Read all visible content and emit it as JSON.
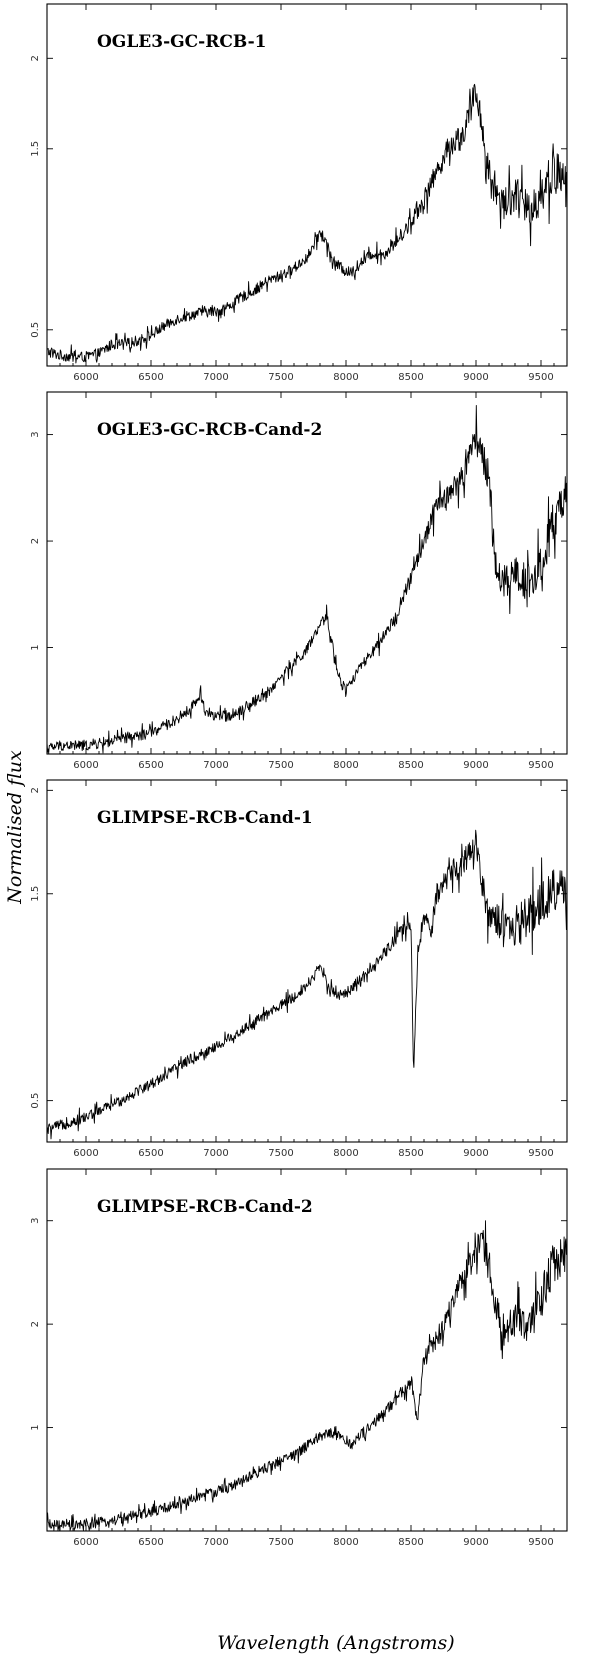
{
  "figure": {
    "ylabel": "Normalised flux",
    "xlabel": "Wavelength (Angstroms)"
  },
  "chart_data": [
    {
      "type": "line",
      "title": "OGLE3-GC-RCB-1",
      "xlim": [
        5700,
        9700
      ],
      "ylim": [
        0.3,
        2.3
      ],
      "xticks": [
        6000,
        6500,
        7000,
        7500,
        8000,
        8500,
        9000,
        9500
      ],
      "xtick_labels": [
        "6000",
        "6500",
        "7000",
        "7500",
        "8000",
        "8500",
        "9000",
        "9500"
      ],
      "yticks": [
        0.5,
        1.5,
        2
      ],
      "ytick_labels": [
        "0.5",
        "1.5",
        "2"
      ],
      "series": [
        {
          "x": [
            5700,
            5800,
            5900,
            6000,
            6100,
            6200,
            6300,
            6400,
            6500,
            6600,
            6700,
            6800,
            6900,
            7000,
            7100,
            7200,
            7300,
            7400,
            7500,
            7600,
            7700,
            7750,
            7800,
            7850,
            7900,
            8000,
            8050,
            8100,
            8200,
            8300,
            8400,
            8500,
            8600,
            8700,
            8800,
            8900,
            9000,
            9050,
            9100,
            9200,
            9300,
            9400,
            9500,
            9600,
            9700
          ],
          "y": [
            0.38,
            0.36,
            0.35,
            0.35,
            0.37,
            0.42,
            0.42,
            0.44,
            0.47,
            0.52,
            0.56,
            0.58,
            0.6,
            0.6,
            0.63,
            0.68,
            0.72,
            0.77,
            0.8,
            0.84,
            0.9,
            0.96,
            1.04,
            0.98,
            0.88,
            0.82,
            0.82,
            0.86,
            0.92,
            0.92,
            1.0,
            1.1,
            1.22,
            1.38,
            1.52,
            1.58,
            1.82,
            1.62,
            1.35,
            1.2,
            1.25,
            1.15,
            1.25,
            1.38,
            1.3
          ]
        }
      ]
    },
    {
      "type": "line",
      "title": "OGLE3-GC-RCB-Cand-2",
      "xlim": [
        5700,
        9700
      ],
      "ylim": [
        0.0,
        3.4
      ],
      "xticks": [
        6000,
        6500,
        7000,
        7500,
        8000,
        8500,
        9000,
        9500
      ],
      "xtick_labels": [
        "6000",
        "6500",
        "7000",
        "7500",
        "8000",
        "8500",
        "9000",
        "9500"
      ],
      "yticks": [
        1,
        2,
        3
      ],
      "ytick_labels": [
        "1",
        "2",
        "3"
      ],
      "series": [
        {
          "x": [
            5700,
            5800,
            5900,
            6000,
            6100,
            6200,
            6300,
            6400,
            6500,
            6600,
            6700,
            6800,
            6880,
            6920,
            7000,
            7100,
            7200,
            7300,
            7400,
            7500,
            7600,
            7700,
            7800,
            7850,
            7900,
            7950,
            8000,
            8100,
            8200,
            8300,
            8400,
            8500,
            8600,
            8700,
            8800,
            8900,
            9000,
            9100,
            9150,
            9200,
            9300,
            9400,
            9500,
            9600,
            9700
          ],
          "y": [
            0.05,
            0.08,
            0.08,
            0.08,
            0.1,
            0.12,
            0.15,
            0.17,
            0.2,
            0.26,
            0.33,
            0.42,
            0.55,
            0.4,
            0.35,
            0.36,
            0.42,
            0.5,
            0.58,
            0.72,
            0.85,
            0.98,
            1.2,
            1.3,
            1.0,
            0.7,
            0.6,
            0.8,
            0.95,
            1.1,
            1.35,
            1.65,
            2.0,
            2.35,
            2.45,
            2.6,
            3.0,
            2.6,
            1.8,
            1.6,
            1.7,
            1.6,
            1.75,
            2.2,
            2.35
          ]
        }
      ]
    },
    {
      "type": "line",
      "title": "GLIMPSE-RCB-Cand-1",
      "xlim": [
        5700,
        9700
      ],
      "ylim": [
        0.3,
        2.05
      ],
      "xticks": [
        6000,
        6500,
        7000,
        7500,
        8000,
        8500,
        9000,
        9500
      ],
      "xtick_labels": [
        "6000",
        "6500",
        "7000",
        "7500",
        "8000",
        "8500",
        "9000",
        "9500"
      ],
      "yticks": [
        0.5,
        1.5,
        2
      ],
      "ytick_labels": [
        "0.5",
        "1.5",
        "2"
      ],
      "series": [
        {
          "x": [
            5700,
            5800,
            5900,
            6000,
            6100,
            6200,
            6300,
            6400,
            6500,
            6600,
            6700,
            6800,
            6900,
            7000,
            7100,
            7200,
            7300,
            7400,
            7500,
            7600,
            7700,
            7750,
            7800,
            7850,
            7900,
            8000,
            8100,
            8200,
            8300,
            8400,
            8500,
            8520,
            8550,
            8600,
            8650,
            8700,
            8800,
            8900,
            9000,
            9050,
            9100,
            9200,
            9300,
            9400,
            9500,
            9600,
            9700
          ],
          "y": [
            0.36,
            0.38,
            0.4,
            0.42,
            0.45,
            0.48,
            0.51,
            0.55,
            0.58,
            0.62,
            0.66,
            0.7,
            0.73,
            0.76,
            0.8,
            0.84,
            0.88,
            0.92,
            0.96,
            1.0,
            1.06,
            1.1,
            1.15,
            1.08,
            1.02,
            1.02,
            1.08,
            1.13,
            1.22,
            1.3,
            1.35,
            0.6,
            1.2,
            1.4,
            1.3,
            1.5,
            1.6,
            1.65,
            1.75,
            1.55,
            1.4,
            1.35,
            1.3,
            1.4,
            1.45,
            1.52,
            1.5
          ]
        }
      ]
    },
    {
      "type": "line",
      "title": "GLIMPSE-RCB-Cand-2",
      "xlim": [
        5700,
        9700
      ],
      "ylim": [
        0.0,
        3.5
      ],
      "xticks": [
        6000,
        6500,
        7000,
        7500,
        8000,
        8500,
        9000,
        9500
      ],
      "xtick_labels": [
        "6000",
        "6500",
        "7000",
        "7500",
        "8000",
        "8500",
        "9000",
        "9500"
      ],
      "yticks": [
        1,
        2,
        3
      ],
      "ytick_labels": [
        "1",
        "2",
        "3"
      ],
      "series": [
        {
          "x": [
            5700,
            5800,
            5900,
            6000,
            6100,
            6200,
            6300,
            6400,
            6500,
            6600,
            6700,
            6800,
            6900,
            7000,
            7100,
            7200,
            7300,
            7400,
            7500,
            7600,
            7700,
            7800,
            7900,
            8000,
            8050,
            8100,
            8200,
            8300,
            8400,
            8500,
            8550,
            8600,
            8700,
            8800,
            8900,
            9000,
            9050,
            9100,
            9150,
            9200,
            9300,
            9400,
            9500,
            9600,
            9700
          ],
          "y": [
            0.06,
            0.05,
            0.05,
            0.06,
            0.08,
            0.1,
            0.13,
            0.15,
            0.18,
            0.22,
            0.26,
            0.3,
            0.35,
            0.38,
            0.42,
            0.48,
            0.55,
            0.62,
            0.68,
            0.74,
            0.82,
            0.92,
            0.95,
            0.88,
            0.82,
            0.92,
            1.02,
            1.15,
            1.3,
            1.45,
            1.1,
            1.65,
            1.85,
            2.15,
            2.45,
            2.7,
            2.8,
            2.55,
            2.2,
            1.95,
            2.05,
            1.9,
            2.25,
            2.6,
            2.75
          ]
        }
      ]
    }
  ]
}
